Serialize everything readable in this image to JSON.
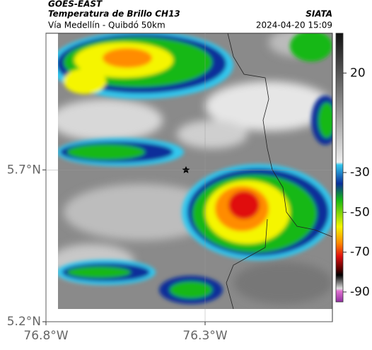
{
  "header": {
    "source": "GOES-EAST",
    "title": "Temperatura de Brillo CH13",
    "agency": "SIATA",
    "subtitle": "Vía Medellín - Quibdó 50km",
    "timestamp": "2024-04-20 15:09"
  },
  "map": {
    "lat_lim": [
      5.2,
      6.15
    ],
    "lon_lim": [
      -76.8,
      -75.9
    ],
    "lat_ticks": [
      {
        "value": 5.7,
        "label": "5.7°N"
      },
      {
        "value": 5.2,
        "label": "5.2°N"
      }
    ],
    "lon_ticks": [
      {
        "value": -76.8,
        "label": "76.8°W"
      },
      {
        "value": -76.3,
        "label": "76.3°W"
      }
    ]
  },
  "colorbar": {
    "lim": [
      -95,
      40
    ],
    "ticks": [
      20,
      -30,
      -50,
      -70,
      -90
    ]
  }
}
